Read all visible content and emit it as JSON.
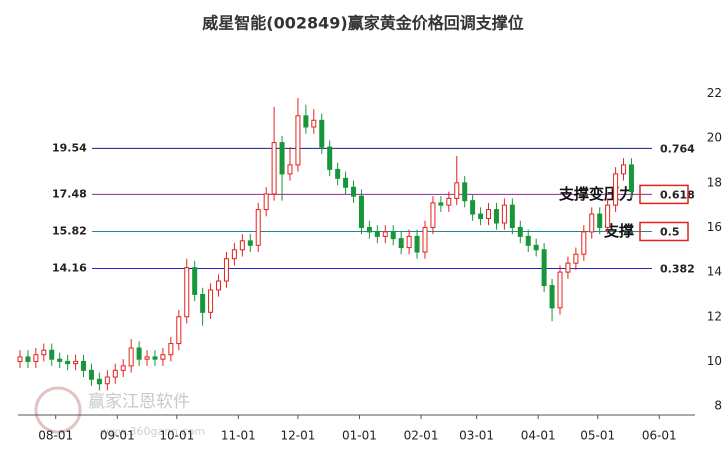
{
  "chart_data": {
    "type": "candlestick",
    "title": "威星智能(002849)赢家黄金价格回调支撑位",
    "watermark": [
      "赢家江恩软件",
      "www.360gann.com"
    ],
    "up_color": "#e3231c",
    "down_color": "#17963a",
    "xlim": [
      -19,
      322
    ],
    "xticks": [
      {
        "value": 0,
        "label": "08-01"
      },
      {
        "value": 31,
        "label": "09-01"
      },
      {
        "value": 61,
        "label": "10-01"
      },
      {
        "value": 92,
        "label": "11-01"
      },
      {
        "value": 122,
        "label": "12-01"
      },
      {
        "value": 153,
        "label": "01-01"
      },
      {
        "value": 184,
        "label": "02-01"
      },
      {
        "value": 212,
        "label": "03-01"
      },
      {
        "value": 243,
        "label": "04-01"
      },
      {
        "value": 273,
        "label": "05-01"
      },
      {
        "value": 304,
        "label": "06-01"
      }
    ],
    "ylim": [
      7.6,
      23.5
    ],
    "yticks": [
      8,
      10,
      12,
      14,
      16,
      18,
      20,
      22
    ],
    "x": [
      -18,
      -14,
      -10,
      -6,
      -2,
      2,
      6,
      10,
      14,
      18,
      22,
      26,
      30,
      34,
      38,
      42,
      46,
      50,
      54,
      58,
      62,
      66,
      70,
      74,
      78,
      82,
      86,
      90,
      94,
      98,
      102,
      106,
      110,
      114,
      118,
      122,
      126,
      130,
      134,
      138,
      142,
      146,
      150,
      154,
      158,
      162,
      166,
      170,
      174,
      178,
      182,
      186,
      190,
      194,
      198,
      202,
      206,
      210,
      214,
      218,
      222,
      226,
      230,
      234,
      238,
      242,
      246,
      250,
      254,
      258,
      262,
      266,
      270,
      274,
      278,
      282,
      286,
      290
    ],
    "open": [
      10.0,
      10.2,
      10.0,
      10.3,
      10.5,
      10.1,
      10.0,
      9.9,
      10.0,
      9.6,
      9.2,
      9.0,
      9.3,
      9.6,
      9.8,
      10.6,
      10.1,
      10.2,
      10.1,
      10.3,
      10.8,
      12.0,
      14.2,
      13.0,
      12.2,
      13.2,
      13.6,
      14.6,
      15.0,
      15.4,
      15.2,
      16.8,
      17.5,
      19.8,
      18.4,
      18.8,
      21.0,
      20.5,
      20.8,
      19.6,
      18.6,
      18.2,
      17.8,
      17.4,
      16.0,
      15.8,
      15.6,
      15.8,
      15.5,
      15.1,
      15.6,
      14.9,
      16.0,
      17.1,
      17.0,
      17.3,
      18.0,
      17.2,
      16.6,
      16.4,
      16.8,
      16.2,
      17.0,
      16.0,
      15.6,
      15.2,
      15.0,
      13.4,
      12.4,
      14.0,
      14.4,
      14.8,
      15.8,
      16.6,
      16.0,
      17.0,
      18.4,
      18.8
    ],
    "high": [
      10.5,
      10.5,
      10.6,
      10.8,
      10.8,
      10.4,
      10.3,
      10.3,
      10.3,
      9.9,
      9.5,
      9.6,
      9.9,
      10.1,
      11.0,
      10.9,
      10.5,
      10.5,
      10.6,
      11.1,
      12.3,
      14.6,
      14.5,
      13.3,
      13.5,
      13.9,
      14.9,
      15.3,
      15.7,
      15.7,
      17.1,
      17.8,
      21.4,
      20.1,
      19.6,
      21.8,
      21.5,
      21.3,
      21.1,
      19.9,
      18.9,
      18.5,
      18.1,
      17.7,
      16.3,
      16.1,
      16.1,
      16.1,
      15.8,
      15.9,
      15.9,
      16.3,
      17.4,
      17.4,
      17.6,
      19.2,
      18.3,
      17.5,
      16.9,
      17.1,
      17.1,
      17.3,
      17.3,
      16.3,
      15.9,
      15.5,
      15.3,
      13.7,
      14.3,
      14.7,
      15.1,
      16.1,
      16.9,
      16.9,
      17.3,
      18.7,
      19.1,
      19.1
    ],
    "low": [
      9.7,
      9.7,
      9.7,
      10.0,
      9.8,
      9.7,
      9.6,
      9.6,
      9.3,
      8.9,
      8.7,
      8.7,
      9.0,
      9.3,
      9.5,
      9.8,
      9.8,
      9.8,
      9.8,
      10.0,
      10.5,
      11.7,
      12.7,
      11.6,
      11.9,
      12.9,
      13.3,
      14.3,
      14.7,
      14.9,
      14.9,
      16.5,
      17.2,
      17.2,
      18.1,
      18.5,
      20.2,
      20.2,
      19.3,
      18.3,
      17.9,
      17.5,
      17.1,
      15.7,
      15.5,
      15.3,
      15.3,
      15.2,
      14.8,
      14.8,
      14.6,
      14.6,
      15.7,
      16.7,
      16.7,
      17.0,
      16.9,
      16.3,
      16.1,
      16.1,
      15.9,
      15.9,
      15.7,
      15.3,
      14.9,
      14.7,
      13.1,
      11.8,
      12.1,
      13.7,
      14.1,
      14.5,
      15.5,
      15.7,
      15.7,
      16.7,
      18.1,
      17.3
    ],
    "close": [
      10.2,
      10.0,
      10.3,
      10.5,
      10.1,
      10.0,
      9.9,
      10.0,
      9.6,
      9.2,
      9.0,
      9.3,
      9.6,
      9.8,
      10.6,
      10.1,
      10.2,
      10.1,
      10.3,
      10.8,
      12.0,
      14.2,
      13.0,
      12.2,
      13.2,
      13.6,
      14.6,
      15.0,
      15.4,
      15.2,
      16.8,
      17.5,
      19.8,
      18.4,
      18.8,
      21.0,
      20.5,
      20.8,
      19.6,
      18.6,
      18.2,
      17.8,
      17.4,
      16.0,
      15.8,
      15.6,
      15.8,
      15.5,
      15.1,
      15.6,
      14.9,
      16.0,
      17.1,
      17.0,
      17.3,
      18.0,
      17.2,
      16.6,
      16.4,
      16.8,
      16.2,
      17.0,
      16.0,
      15.6,
      15.2,
      15.0,
      13.4,
      12.4,
      14.0,
      14.4,
      14.8,
      15.8,
      16.6,
      16.0,
      17.0,
      18.4,
      18.8,
      17.6
    ],
    "levels": [
      {
        "value": 19.54,
        "ratio": 0.764,
        "color": "#1c1c86"
      },
      {
        "value": 17.48,
        "ratio": 0.618,
        "color": "#8e2a8e",
        "annotation": "支撑变压力"
      },
      {
        "value": 15.82,
        "ratio": 0.5,
        "color": "#1f8a8a",
        "annotation": "支撑"
      },
      {
        "value": 14.16,
        "ratio": 0.382,
        "color": "#2323c8"
      }
    ]
  }
}
